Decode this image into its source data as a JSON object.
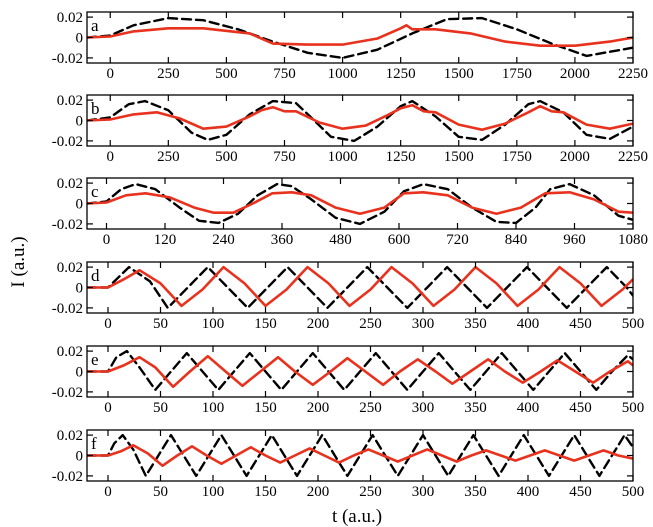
{
  "chart_data": [
    {
      "type": "line",
      "panel_label": "a",
      "xlim": [
        -100,
        2250
      ],
      "ylim": [
        -0.025,
        0.025
      ],
      "xticks": [
        0,
        250,
        500,
        750,
        1000,
        1250,
        1500,
        1750,
        2000,
        2250
      ],
      "yticks": [
        0.02,
        0,
        -0.02
      ],
      "ytick_labels": [
        "0.02",
        "0",
        "-0.02"
      ],
      "series": [
        {
          "style": "dashed",
          "color": "#000000",
          "x": [
            -100,
            0,
            100,
            250,
            400,
            550,
            700,
            850,
            1000,
            1150,
            1300,
            1450,
            1600,
            1750,
            1900,
            2050,
            2250
          ],
          "y": [
            0,
            0.002,
            0.012,
            0.019,
            0.017,
            0.008,
            -0.004,
            -0.015,
            -0.02,
            -0.012,
            0.004,
            0.018,
            0.019,
            0.008,
            -0.006,
            -0.018,
            -0.01
          ]
        },
        {
          "style": "solid",
          "color": "#e8321e",
          "x": [
            -100,
            0,
            100,
            250,
            400,
            600,
            700,
            850,
            1000,
            1150,
            1250,
            1275,
            1300,
            1400,
            1550,
            1700,
            1850,
            2000,
            2150,
            2250
          ],
          "y": [
            0,
            0.001,
            0.006,
            0.009,
            0.009,
            0.004,
            -0.006,
            -0.007,
            -0.007,
            -0.001,
            0.009,
            0.012,
            0.008,
            0.008,
            0.004,
            -0.004,
            -0.008,
            -0.008,
            -0.004,
            0
          ]
        }
      ]
    },
    {
      "type": "line",
      "panel_label": "b",
      "xlim": [
        -100,
        2250
      ],
      "ylim": [
        -0.025,
        0.025
      ],
      "xticks": [
        0,
        250,
        500,
        750,
        1000,
        1250,
        1500,
        1750,
        2000,
        2250
      ],
      "yticks": [
        0.02,
        0,
        -0.02
      ],
      "ytick_labels": [
        "0.02",
        "0",
        "-0.02"
      ],
      "series": [
        {
          "style": "dashed",
          "color": "#000000",
          "x": [
            -100,
            0,
            80,
            150,
            250,
            350,
            420,
            500,
            600,
            700,
            800,
            860,
            950,
            1050,
            1150,
            1250,
            1300,
            1400,
            1500,
            1600,
            1700,
            1800,
            1850,
            1950,
            2050,
            2150,
            2250
          ],
          "y": [
            0,
            0.003,
            0.016,
            0.019,
            0.01,
            -0.012,
            -0.019,
            -0.014,
            0.006,
            0.019,
            0.017,
            0.004,
            -0.016,
            -0.02,
            -0.006,
            0.014,
            0.019,
            0.004,
            -0.016,
            -0.019,
            -0.004,
            0.016,
            0.019,
            0.008,
            -0.014,
            -0.018,
            -0.006
          ]
        },
        {
          "style": "solid",
          "color": "#e8321e",
          "x": [
            -100,
            0,
            100,
            200,
            300,
            400,
            500,
            600,
            650,
            700,
            750,
            800,
            900,
            1000,
            1100,
            1200,
            1250,
            1300,
            1350,
            1400,
            1500,
            1600,
            1700,
            1800,
            1850,
            1900,
            1950,
            2050,
            2150,
            2250
          ],
          "y": [
            0,
            0.001,
            0.006,
            0.008,
            0.002,
            -0.008,
            -0.006,
            0.004,
            0.01,
            0.013,
            0.009,
            0.009,
            -0.002,
            -0.008,
            -0.005,
            0.006,
            0.012,
            0.015,
            0.009,
            0.008,
            -0.004,
            -0.009,
            -0.003,
            0.008,
            0.014,
            0.009,
            0.008,
            -0.004,
            -0.008,
            -0.003
          ]
        }
      ]
    },
    {
      "type": "line",
      "panel_label": "c",
      "xlim": [
        -40,
        1080
      ],
      "ylim": [
        -0.025,
        0.025
      ],
      "xticks": [
        0,
        120,
        240,
        360,
        480,
        600,
        720,
        840,
        960,
        1080
      ],
      "yticks": [
        0.02,
        0,
        -0.02
      ],
      "ytick_labels": [
        "0.02",
        "0",
        "-0.02"
      ],
      "series": [
        {
          "style": "dashed",
          "color": "#000000",
          "x": [
            -40,
            0,
            30,
            60,
            100,
            150,
            190,
            230,
            270,
            310,
            350,
            380,
            420,
            470,
            520,
            570,
            610,
            650,
            700,
            750,
            800,
            840,
            880,
            910,
            950,
            1000,
            1050,
            1080
          ],
          "y": [
            0,
            0.002,
            0.014,
            0.019,
            0.014,
            -0.004,
            -0.017,
            -0.019,
            -0.01,
            0.008,
            0.019,
            0.017,
            0.004,
            -0.014,
            -0.02,
            -0.008,
            0.012,
            0.019,
            0.014,
            -0.004,
            -0.018,
            -0.019,
            -0.004,
            0.014,
            0.019,
            0.008,
            -0.012,
            -0.016
          ]
        },
        {
          "style": "solid",
          "color": "#e8321e",
          "x": [
            -40,
            0,
            40,
            80,
            130,
            180,
            220,
            260,
            300,
            340,
            380,
            420,
            470,
            520,
            570,
            610,
            650,
            700,
            750,
            800,
            850,
            900,
            950,
            1000,
            1050,
            1080
          ],
          "y": [
            0,
            0.001,
            0.008,
            0.01,
            0.006,
            -0.004,
            -0.009,
            -0.009,
            0.0,
            0.01,
            0.011,
            0.008,
            -0.004,
            -0.01,
            -0.004,
            0.01,
            0.011,
            0.008,
            -0.004,
            -0.01,
            -0.004,
            0.01,
            0.011,
            0.004,
            -0.008,
            -0.009
          ]
        }
      ]
    },
    {
      "type": "line",
      "panel_label": "d",
      "xlim": [
        -20,
        500
      ],
      "ylim": [
        -0.025,
        0.025
      ],
      "xticks": [
        0,
        50,
        100,
        150,
        200,
        250,
        300,
        350,
        400,
        450,
        500
      ],
      "yticks": [
        0.02,
        0,
        -0.02
      ],
      "ytick_labels": [
        "0.02",
        "0",
        "-0.02"
      ],
      "series": [
        {
          "style": "dashed",
          "color": "#000000",
          "x": [
            -20,
            0,
            10,
            20,
            40,
            57,
            76,
            95,
            114,
            133,
            152,
            171,
            190,
            209,
            228,
            247,
            266,
            285,
            304,
            323,
            342,
            361,
            380,
            399,
            418,
            437,
            456,
            475,
            494,
            500
          ],
          "y": [
            0,
            0,
            0.01,
            0.02,
            0.006,
            -0.02,
            0,
            0.02,
            0,
            -0.02,
            0,
            0.02,
            0,
            -0.02,
            0,
            0.02,
            0,
            -0.02,
            0,
            0.02,
            0,
            -0.02,
            0,
            0.02,
            0,
            -0.02,
            0,
            0.02,
            0,
            -0.008
          ]
        },
        {
          "style": "solid",
          "color": "#e8321e",
          "x": [
            -20,
            0,
            15,
            30,
            50,
            70,
            90,
            110,
            130,
            150,
            170,
            190,
            210,
            230,
            250,
            270,
            290,
            310,
            330,
            350,
            370,
            390,
            410,
            430,
            450,
            470,
            490,
            500
          ],
          "y": [
            0,
            0,
            0.008,
            0.017,
            0.004,
            -0.018,
            -0.002,
            0.02,
            0.004,
            -0.018,
            -0.002,
            0.02,
            0.004,
            -0.018,
            -0.002,
            0.02,
            0.004,
            -0.018,
            -0.002,
            0.02,
            0.004,
            -0.018,
            -0.002,
            0.02,
            0.004,
            -0.018,
            -0.002,
            0.008
          ]
        }
      ]
    },
    {
      "type": "line",
      "panel_label": "e",
      "xlim": [
        -20,
        500
      ],
      "ylim": [
        -0.025,
        0.025
      ],
      "xticks": [
        0,
        50,
        100,
        150,
        200,
        250,
        300,
        350,
        400,
        450,
        500
      ],
      "yticks": [
        0.02,
        0,
        -0.02
      ],
      "ytick_labels": [
        "0.02",
        "0",
        "-0.02"
      ],
      "series": [
        {
          "style": "dashed",
          "color": "#000000",
          "x": [
            -20,
            0,
            8,
            18,
            30,
            45,
            60,
            75,
            90,
            105,
            120,
            135,
            150,
            165,
            180,
            195,
            210,
            225,
            240,
            255,
            270,
            285,
            300,
            315,
            330,
            345,
            360,
            375,
            390,
            405,
            420,
            435,
            450,
            465,
            480,
            495,
            500
          ],
          "y": [
            0,
            0,
            0.014,
            0.02,
            0.004,
            -0.018,
            0,
            0.018,
            0,
            -0.018,
            0,
            0.018,
            0,
            -0.018,
            0,
            0.018,
            0,
            -0.018,
            0,
            0.018,
            0,
            -0.018,
            0,
            0.018,
            0,
            -0.018,
            0,
            0.018,
            0,
            -0.018,
            0,
            0.018,
            0,
            -0.018,
            0,
            0.016,
            0.012
          ]
        },
        {
          "style": "solid",
          "color": "#e8321e",
          "x": [
            -20,
            0,
            15,
            30,
            45,
            62,
            78,
            95,
            112,
            128,
            145,
            162,
            178,
            195,
            212,
            228,
            245,
            262,
            278,
            295,
            312,
            328,
            345,
            362,
            378,
            395,
            412,
            428,
            445,
            462,
            478,
            495,
            500
          ],
          "y": [
            0,
            0,
            0.006,
            0.014,
            0.004,
            -0.015,
            0,
            0.015,
            0,
            -0.014,
            0,
            0.014,
            0,
            -0.013,
            0,
            0.013,
            0,
            -0.013,
            0,
            0.012,
            0,
            -0.012,
            0,
            0.012,
            0,
            -0.011,
            0,
            0.011,
            0,
            -0.011,
            0,
            0.01,
            0.006
          ]
        }
      ]
    },
    {
      "type": "line",
      "panel_label": "f",
      "xlim": [
        -20,
        500
      ],
      "ylim": [
        -0.025,
        0.025
      ],
      "xticks": [
        0,
        50,
        100,
        150,
        200,
        250,
        300,
        350,
        400,
        450,
        500
      ],
      "yticks": [
        0.02,
        0,
        -0.02
      ],
      "ytick_labels": [
        "0.02",
        "0",
        "-0.02"
      ],
      "series": [
        {
          "style": "dashed",
          "color": "#000000",
          "x": [
            -20,
            0,
            6,
            14,
            24,
            36,
            48,
            60,
            72,
            84,
            96,
            108,
            120,
            132,
            144,
            156,
            168,
            180,
            192,
            204,
            216,
            228,
            240,
            252,
            264,
            276,
            288,
            300,
            312,
            324,
            336,
            348,
            360,
            372,
            384,
            396,
            408,
            420,
            432,
            444,
            456,
            468,
            480,
            492,
            500
          ],
          "y": [
            0,
            0,
            0.012,
            0.02,
            0.006,
            -0.02,
            0,
            0.02,
            0,
            -0.02,
            0,
            0.02,
            0,
            -0.02,
            0,
            0.02,
            0,
            -0.02,
            0,
            0.02,
            0,
            -0.02,
            0,
            0.02,
            0,
            -0.02,
            0,
            0.02,
            0,
            -0.02,
            0,
            0.02,
            0,
            -0.02,
            0,
            0.02,
            0,
            -0.02,
            0,
            0.02,
            0,
            -0.02,
            0,
            0.02,
            0.008
          ]
        },
        {
          "style": "solid",
          "color": "#e8321e",
          "x": [
            -20,
            0,
            12,
            24,
            38,
            52,
            66,
            80,
            94,
            108,
            122,
            136,
            150,
            164,
            178,
            192,
            206,
            220,
            234,
            248,
            262,
            276,
            290,
            304,
            318,
            332,
            346,
            360,
            374,
            388,
            402,
            416,
            430,
            444,
            458,
            472,
            486,
            500
          ],
          "y": [
            0,
            0,
            0.004,
            0.01,
            0.002,
            -0.01,
            0,
            0.009,
            0,
            -0.008,
            0,
            0.008,
            0,
            -0.007,
            0,
            0.007,
            0,
            -0.007,
            0,
            0.006,
            0,
            -0.006,
            0,
            0.006,
            0,
            -0.006,
            0,
            0.005,
            0,
            -0.005,
            0,
            0.005,
            0,
            -0.005,
            0,
            0.005,
            0,
            -0.003
          ]
        }
      ]
    }
  ],
  "axis_labels": {
    "ylabel": "I (a.u.)",
    "xlabel": "t (a.u.)"
  }
}
